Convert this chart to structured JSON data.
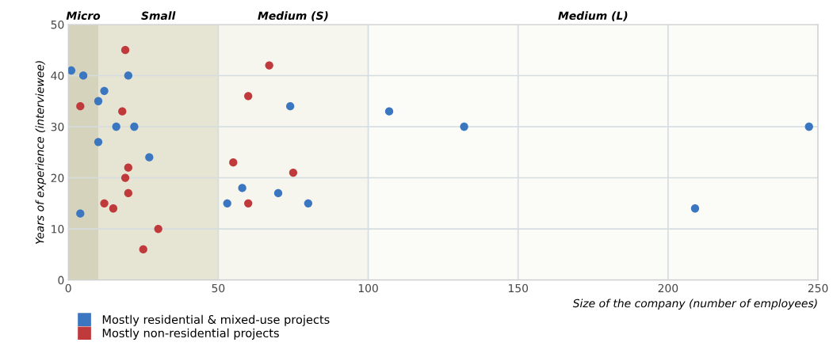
{
  "chart_data": {
    "type": "scatter",
    "xlabel": "Size of the company (number of employees)",
    "ylabel": "Years of experience (interviewee)",
    "xlim": [
      0,
      250
    ],
    "ylim": [
      0,
      50
    ],
    "xticks": [
      0,
      50,
      100,
      150,
      200,
      250
    ],
    "yticks": [
      0,
      10,
      20,
      30,
      40,
      50
    ],
    "grid": true,
    "legend": "bottom left",
    "marker": "circle",
    "series": [
      {
        "name": "Mostly residential & mixed-use projects",
        "color": "#3b76c0",
        "x": [
          1,
          5,
          12,
          10,
          16,
          22,
          10,
          27,
          4,
          20,
          74,
          107,
          132,
          247,
          209,
          58,
          53,
          70,
          80
        ],
        "values": [
          41,
          40,
          37,
          35,
          30,
          30,
          27,
          24,
          13,
          40,
          34,
          33,
          30,
          30,
          14,
          18,
          15,
          17,
          15
        ]
      },
      {
        "name": "Mostly non-residential projects",
        "color": "#c0393b",
        "x": [
          19,
          4,
          18,
          20,
          19,
          20,
          12,
          15,
          30,
          25,
          67,
          60,
          55,
          75,
          60
        ],
        "values": [
          45,
          34,
          33,
          22,
          20,
          17,
          15,
          14,
          10,
          6,
          42,
          36,
          23,
          21,
          15
        ]
      }
    ],
    "bands": [
      {
        "axis": "x",
        "from": 0,
        "to": 10,
        "label": "Micro",
        "color": "#d6d3bc"
      },
      {
        "axis": "x",
        "from": 10,
        "to": 50,
        "label": "Small",
        "color": "#e6e4d3"
      },
      {
        "axis": "x",
        "from": 50,
        "to": 100,
        "label": "Medium (S)",
        "color": "#f6f5ee"
      },
      {
        "axis": "x",
        "from": 100,
        "to": 250,
        "label": "Medium (L)",
        "color": "#fbfbf7"
      }
    ]
  }
}
